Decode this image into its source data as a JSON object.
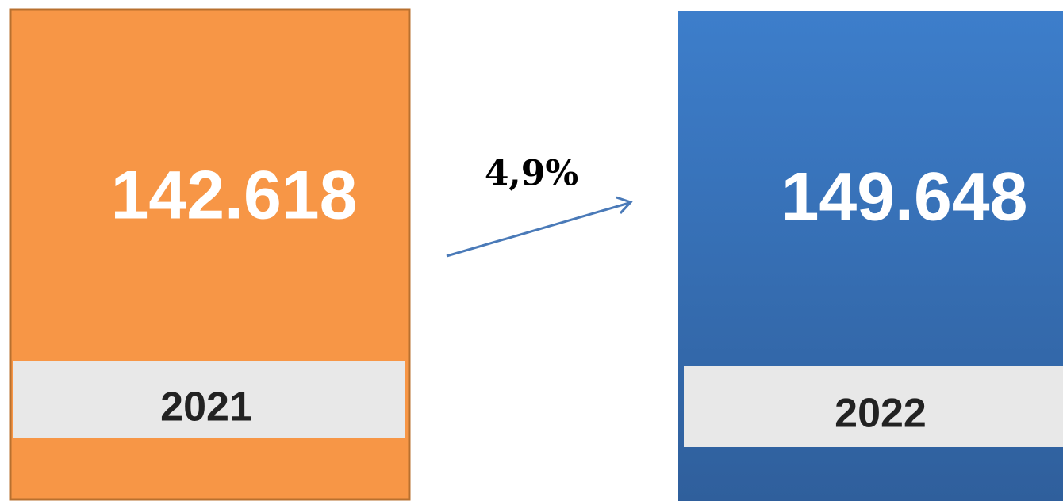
{
  "cards": [
    {
      "value": "142.618",
      "year": "2021"
    },
    {
      "value": "149.648",
      "year": "2022"
    }
  ],
  "change": "4,9%"
}
